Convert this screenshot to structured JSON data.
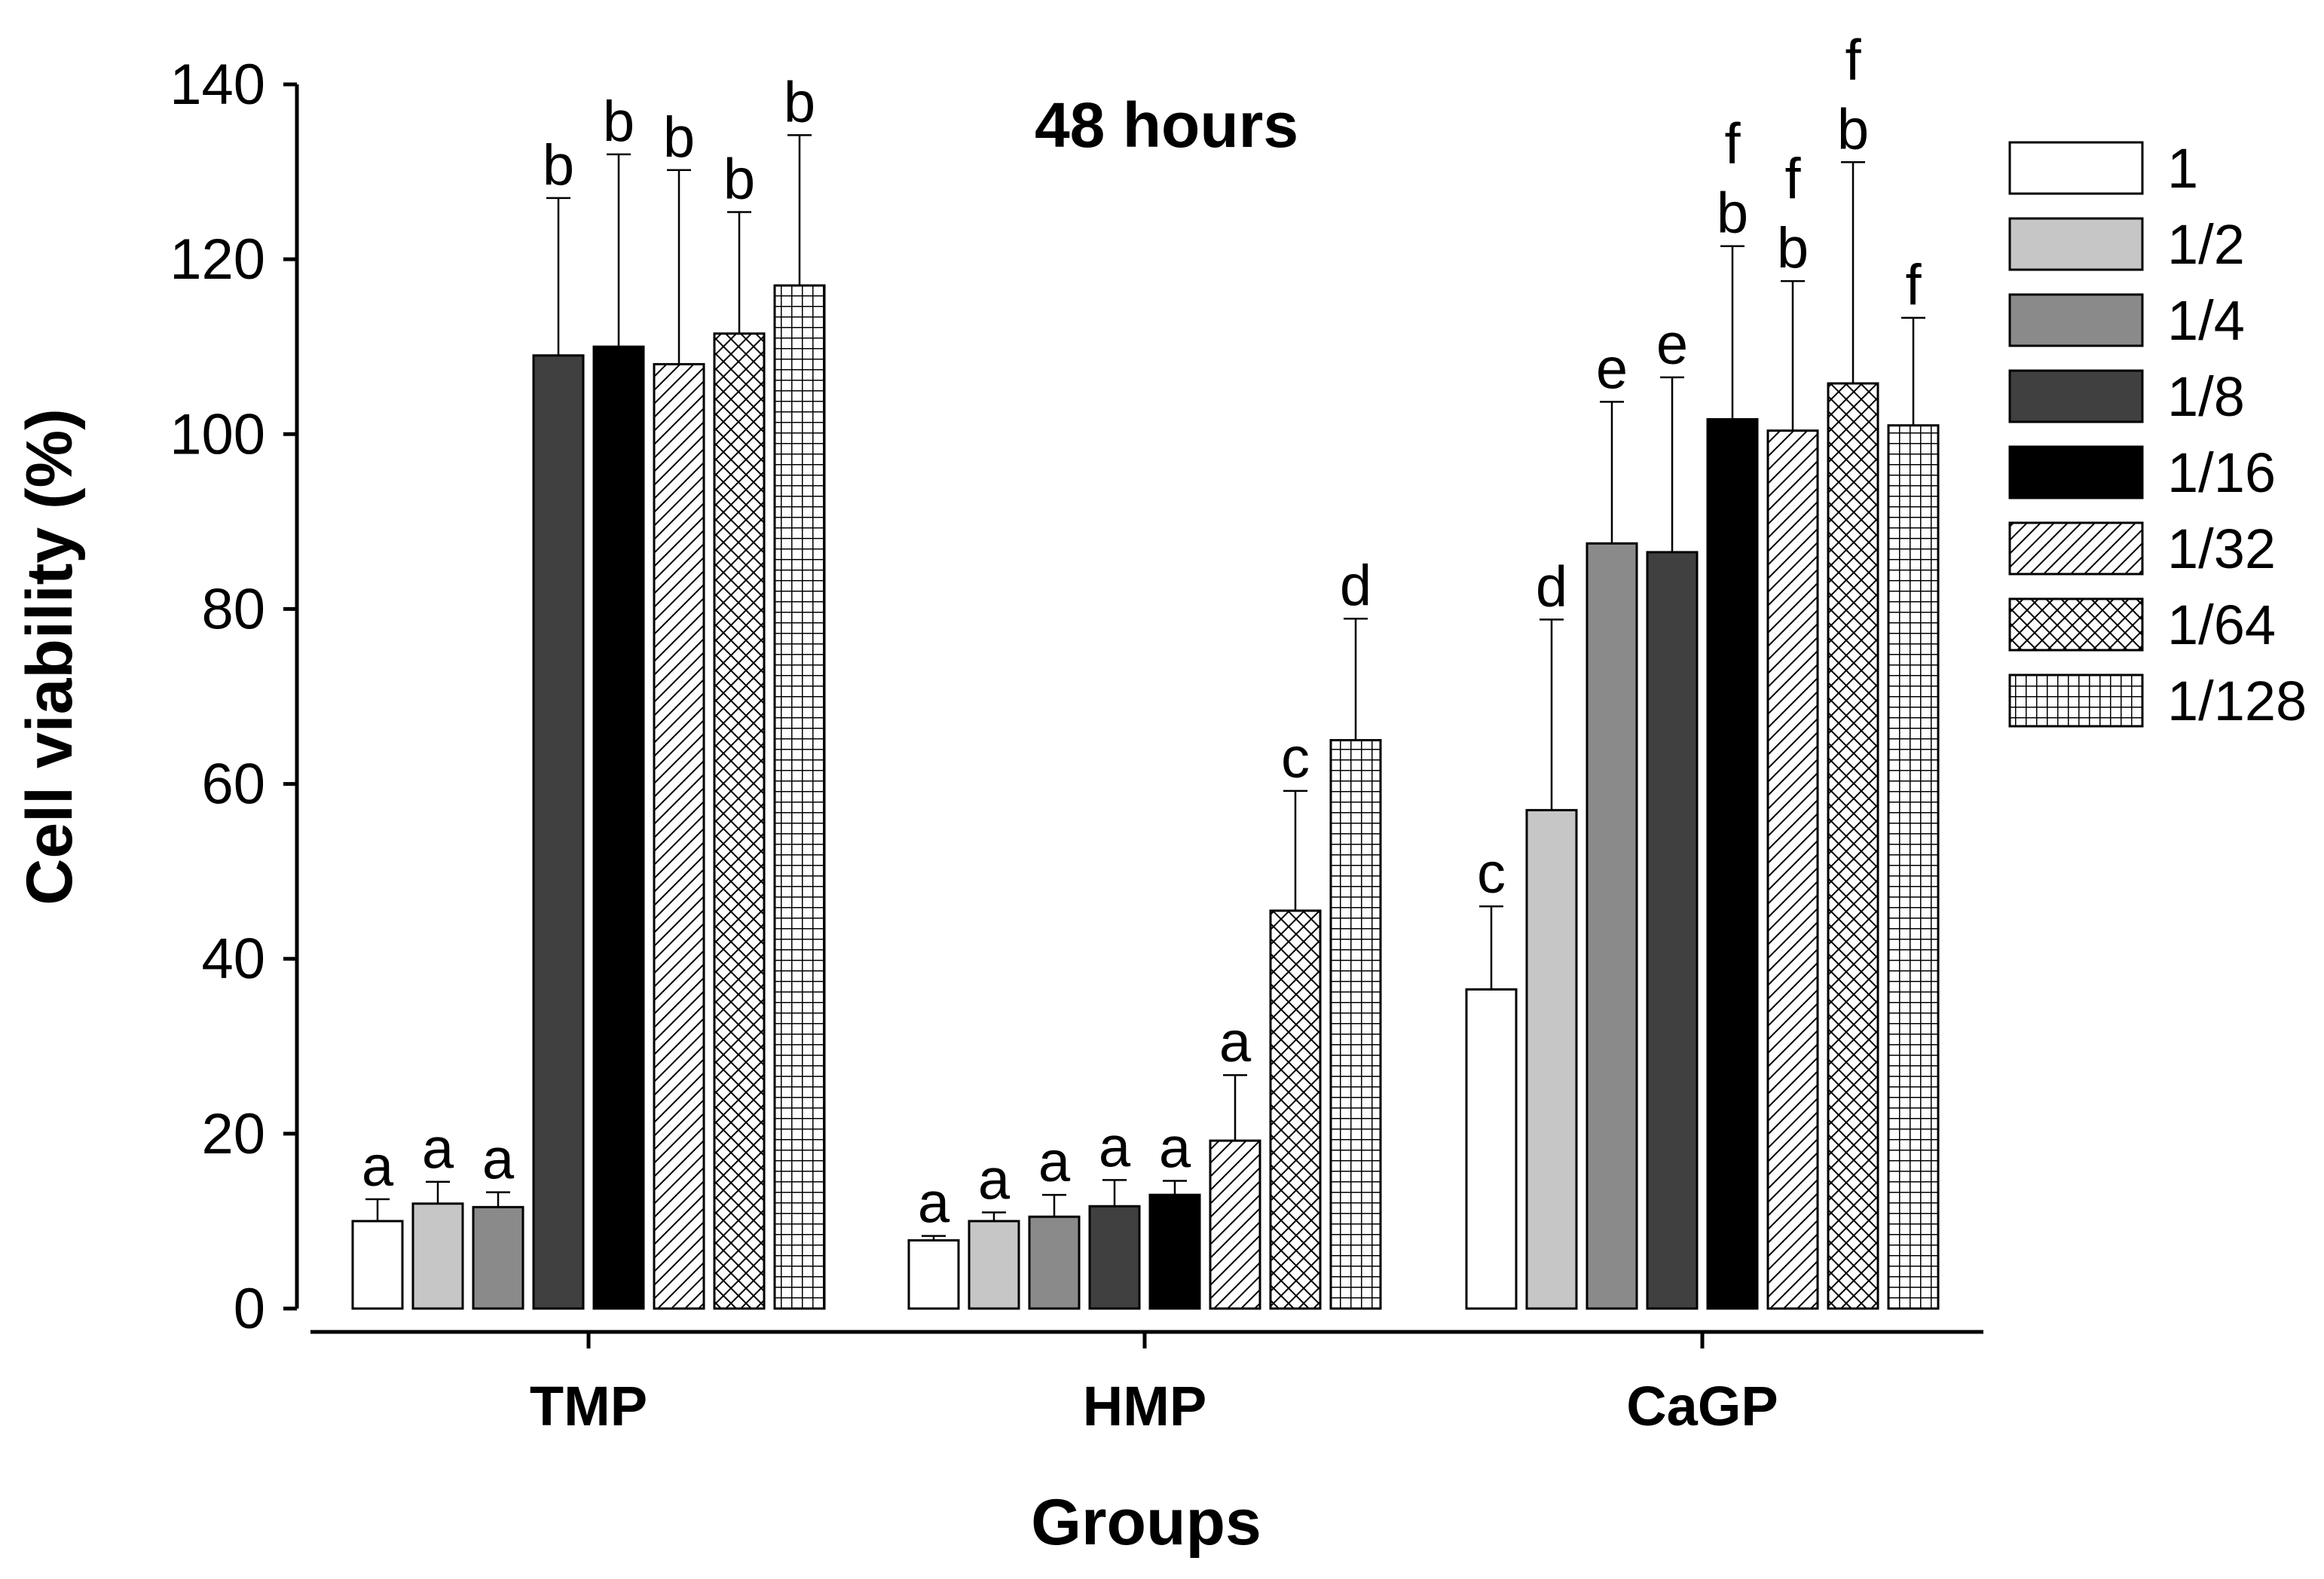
{
  "chart_data": {
    "type": "bar",
    "title": "48 hours",
    "xlabel": "Groups",
    "ylabel": "Cell viability (%)",
    "ylim": [
      0,
      140
    ],
    "yticks": [
      0,
      20,
      40,
      60,
      80,
      100,
      120,
      140
    ],
    "ytick_labels": [
      "0",
      "20",
      "40",
      "60",
      "80",
      "100",
      "120",
      "140"
    ],
    "categories": [
      "TMP",
      "HMP",
      "CaGP"
    ],
    "legend_position": "right",
    "series": [
      {
        "name": "1",
        "fill": "white",
        "values": [
          10,
          7.8,
          36.5
        ],
        "errors": [
          2.5,
          0.5,
          9.5
        ],
        "labels": [
          "a",
          "a",
          "c"
        ]
      },
      {
        "name": "1/2",
        "fill": "#c6c6c6",
        "values": [
          12,
          10,
          57
        ],
        "errors": [
          2.5,
          1,
          21.8
        ],
        "labels": [
          "a",
          "a",
          "d"
        ]
      },
      {
        "name": "1/4",
        "fill": "#8a8a8a",
        "values": [
          11.6,
          10.5,
          87.5
        ],
        "errors": [
          1.7,
          2.5,
          16.2
        ],
        "labels": [
          "a",
          "a",
          "e"
        ]
      },
      {
        "name": "1/8",
        "fill": "#404040",
        "values": [
          109,
          11.7,
          86.5
        ],
        "errors": [
          18,
          3,
          20
        ],
        "labels": [
          "b",
          "a",
          "e"
        ]
      },
      {
        "name": "1/16",
        "fill": "#000000",
        "values": [
          110,
          13,
          101.7
        ],
        "errors": [
          22,
          1.6,
          19.8
        ],
        "labels": [
          "b",
          "a",
          "f b"
        ]
      },
      {
        "name": "1/32",
        "fill": "diagonal",
        "values": [
          108,
          19.2,
          100.4
        ],
        "errors": [
          22.2,
          7.5,
          17.1
        ],
        "labels": [
          "b",
          "a",
          "f b"
        ]
      },
      {
        "name": "1/64",
        "fill": "crosshatch",
        "values": [
          111.5,
          45.5,
          105.8
        ],
        "errors": [
          13.9,
          13.7,
          25.3
        ],
        "labels": [
          "b",
          "c",
          "f b"
        ]
      },
      {
        "name": "1/128",
        "fill": "grid",
        "values": [
          117,
          65,
          101
        ],
        "errors": [
          17.2,
          13.9,
          12.3
        ],
        "labels": [
          "b",
          "d",
          "f"
        ]
      }
    ]
  }
}
